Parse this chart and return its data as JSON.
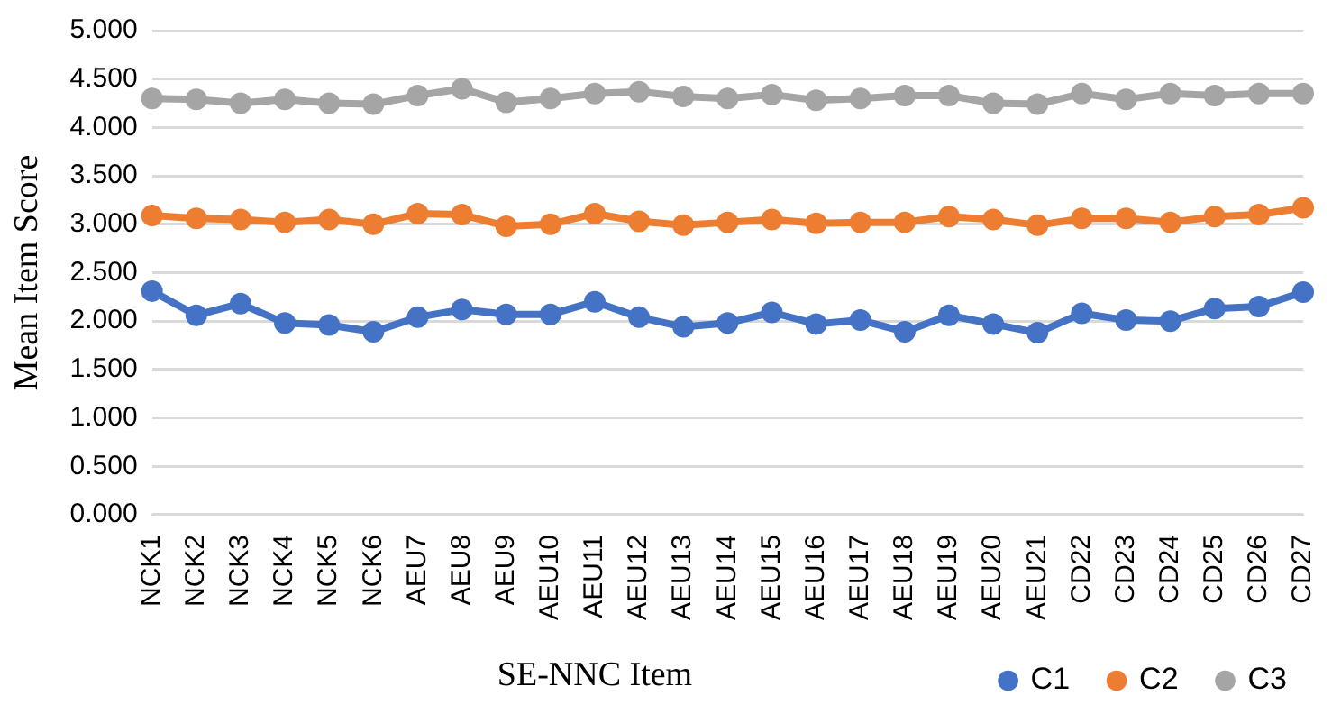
{
  "chart_data": {
    "type": "line",
    "xlabel": "SE-NNC Item",
    "ylabel": "Mean Item Score",
    "categories": [
      "NCK1",
      "NCK2",
      "NCK3",
      "NCK4",
      "NCK5",
      "NCK6",
      "AEU7",
      "AEU8",
      "AEU9",
      "AEU10",
      "AEU11",
      "AEU12",
      "AEU13",
      "AEU14",
      "AEU15",
      "AEU16",
      "AEU17",
      "AEU18",
      "AEU19",
      "AEU20",
      "AEU21",
      "CD22",
      "CD23",
      "CD24",
      "CD25",
      "CD26",
      "CD27"
    ],
    "series": [
      {
        "name": "C1",
        "color": "#4472c4",
        "values": [
          2.31,
          2.06,
          2.18,
          1.98,
          1.96,
          1.89,
          2.04,
          2.12,
          2.07,
          2.07,
          2.2,
          2.04,
          1.94,
          1.98,
          2.09,
          1.97,
          2.01,
          1.89,
          2.06,
          1.97,
          1.88,
          2.08,
          2.01,
          2.0,
          2.13,
          2.15,
          2.3
        ]
      },
      {
        "name": "C2",
        "color": "#ed7d31",
        "values": [
          3.09,
          3.06,
          3.05,
          3.02,
          3.05,
          3.0,
          3.11,
          3.1,
          2.98,
          3.0,
          3.11,
          3.03,
          2.99,
          3.02,
          3.05,
          3.01,
          3.02,
          3.02,
          3.08,
          3.05,
          2.99,
          3.06,
          3.06,
          3.02,
          3.08,
          3.1,
          3.17
        ]
      },
      {
        "name": "C3",
        "color": "#a5a5a5",
        "values": [
          4.3,
          4.29,
          4.25,
          4.29,
          4.25,
          4.24,
          4.33,
          4.4,
          4.26,
          4.3,
          4.35,
          4.37,
          4.32,
          4.3,
          4.34,
          4.28,
          4.3,
          4.33,
          4.33,
          4.25,
          4.24,
          4.35,
          4.29,
          4.35,
          4.33,
          4.35,
          4.35
        ]
      }
    ],
    "ylim": [
      0,
      5
    ],
    "yticks": [
      {
        "value": 0,
        "label": "0.000"
      },
      {
        "value": 0.5,
        "label": "0.500"
      },
      {
        "value": 1,
        "label": "1.000"
      },
      {
        "value": 1.5,
        "label": "1.500"
      },
      {
        "value": 2,
        "label": "2.000"
      },
      {
        "value": 2.5,
        "label": "2.500"
      },
      {
        "value": 3,
        "label": "3.000"
      },
      {
        "value": 3.5,
        "label": "3.500"
      },
      {
        "value": 4,
        "label": "4.000"
      },
      {
        "value": 4.5,
        "label": "4.500"
      },
      {
        "value": 5,
        "label": "5.000"
      }
    ],
    "grid": "y",
    "legend": "bottom",
    "marker": "circle",
    "line_style": "solid"
  }
}
